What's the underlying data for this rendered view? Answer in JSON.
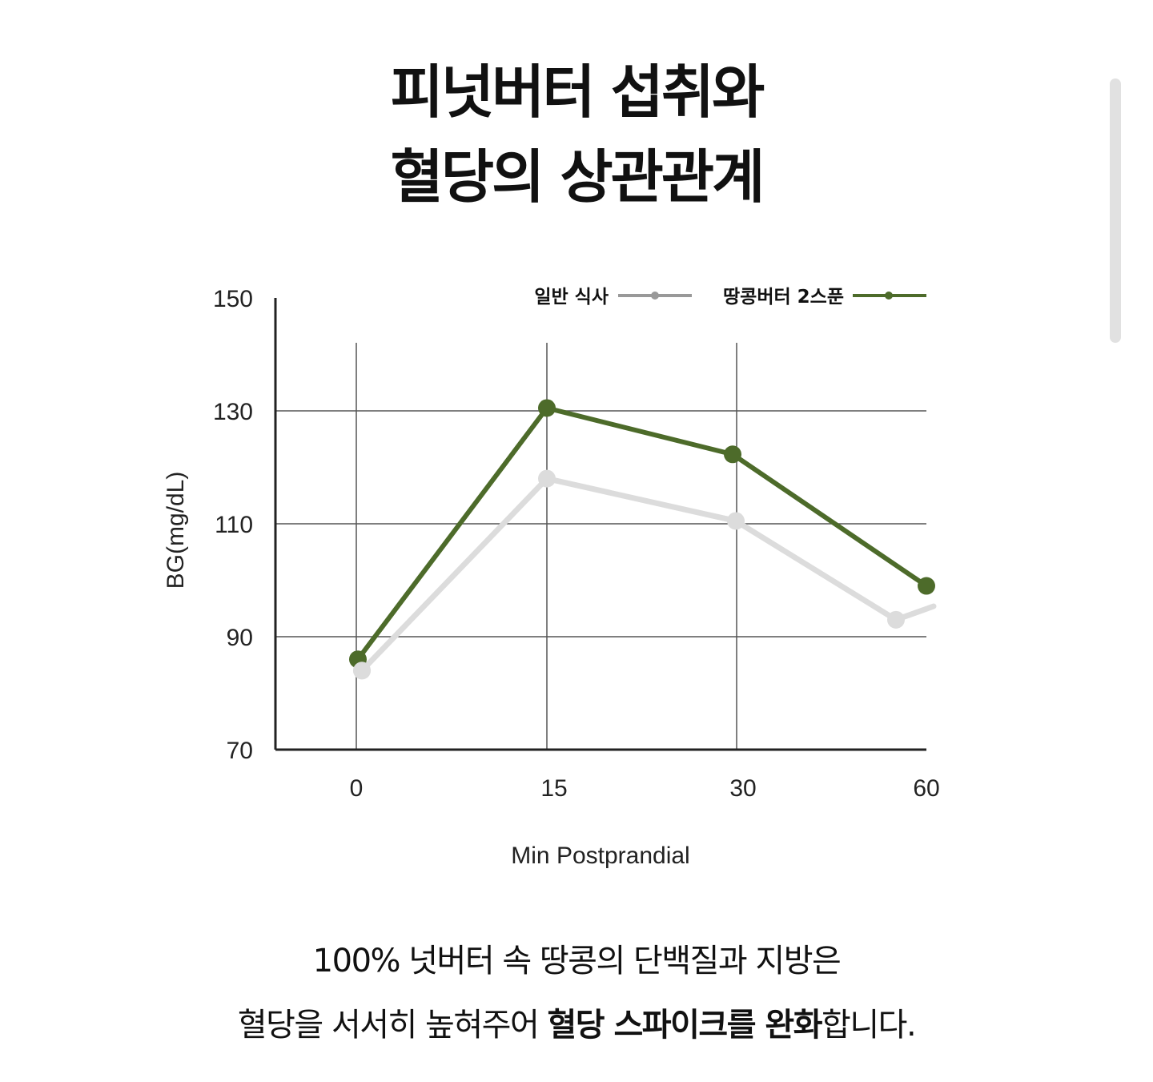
{
  "header": {
    "title_line1": "피넛버터 섭취와",
    "title_line2": "혈당의 상관관계"
  },
  "caption": {
    "line1": "100% 넛버터 속 땅콩의 단백질과 지방은",
    "line2_prefix": "혈당을 서서히 높혀주어 ",
    "line2_bold": "혈당 스파이크를 완화",
    "line2_suffix": "합니다."
  },
  "chart_data": {
    "type": "line",
    "categories": [
      "0",
      "15",
      "30",
      "60"
    ],
    "xlabel": "Min Postprandial",
    "ylabel": "BG(mg/dL)",
    "ylim": [
      70,
      150
    ],
    "yticks": [
      150,
      130,
      110,
      90,
      70
    ],
    "grid": true,
    "legend_position": "top-right",
    "series": [
      {
        "name": "일반 식사",
        "values": [
          84,
          118,
          110.5,
          93
        ],
        "line_color": "#dcdcdc",
        "legend_color": "#999999"
      },
      {
        "name": "땅콩버터 2스푼",
        "values": [
          86,
          130.5,
          122.3,
          99
        ],
        "line_color": "#4d6b2a",
        "legend_color": "#4d6b2a"
      }
    ]
  }
}
